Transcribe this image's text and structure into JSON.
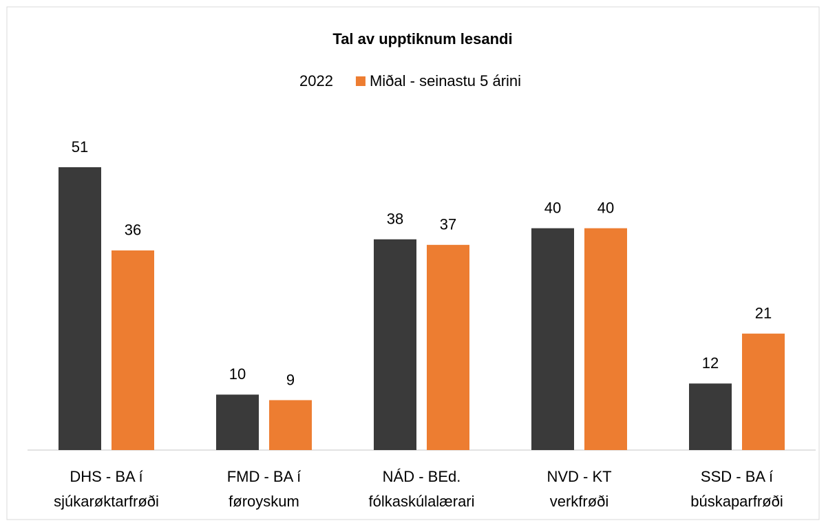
{
  "chart_data": {
    "type": "bar",
    "title": "Tal av upptiknum lesandi",
    "categories": [
      [
        "DHS - BA í",
        "sjúkarøktarfrøði"
      ],
      [
        "FMD - BA í",
        "føroyskum"
      ],
      [
        "NÁD - BEd.",
        "fólkaskúlalærari"
      ],
      [
        "NVD - KT",
        "verkfrøði"
      ],
      [
        "SSD - BA í",
        "búskaparfrøði"
      ]
    ],
    "series": [
      {
        "name": "2022",
        "color": "#3a3a3a",
        "values": [
          51,
          10,
          38,
          40,
          12
        ]
      },
      {
        "name": "Miðal - seinastu 5 árini",
        "color": "#ed7d31",
        "values": [
          36,
          9,
          37,
          40,
          21
        ]
      }
    ],
    "legend": "top"
  }
}
